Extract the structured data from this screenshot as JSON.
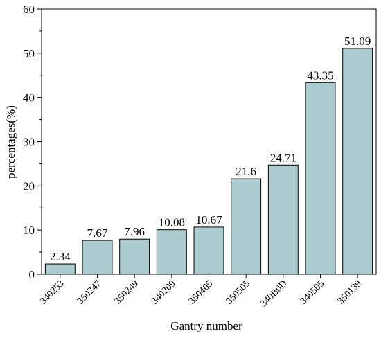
{
  "chart_data": {
    "type": "bar",
    "title": "",
    "xlabel": "Gantry number",
    "ylabel": "percentages(%)",
    "categories": [
      "340253",
      "350247",
      "350249",
      "340209",
      "350405",
      "350505",
      "340B0D",
      "340505",
      "350139"
    ],
    "values": [
      2.34,
      7.67,
      7.96,
      10.08,
      10.67,
      21.6,
      24.71,
      43.35,
      51.09
    ],
    "data_labels": [
      "2.34",
      "7.67",
      "7.96",
      "10.08",
      "10.67",
      "21.6",
      "24.71",
      "43.35",
      "51.09"
    ],
    "ylim": [
      0,
      60
    ],
    "yticks": [
      "0",
      "10",
      "20",
      "30",
      "40",
      "50",
      "60"
    ],
    "grid": false,
    "legend": "none",
    "bar_color": "#abcbcf",
    "edge_color": "#000000"
  }
}
